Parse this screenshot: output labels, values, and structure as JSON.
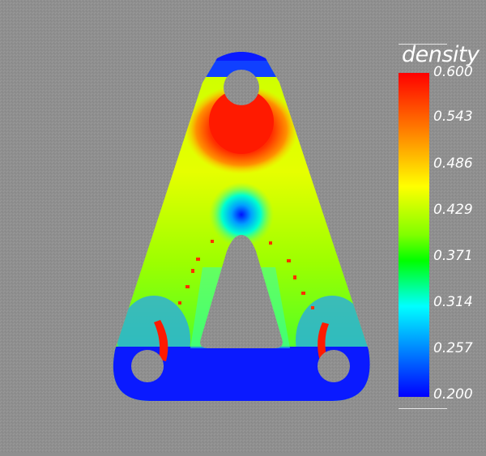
{
  "legend": {
    "title": "density",
    "ticks": [
      "0.600",
      "0.543",
      "0.486",
      "0.429",
      "0.371",
      "0.314",
      "0.257",
      "0.200"
    ],
    "range": [
      0.2,
      0.6
    ],
    "colormap": [
      "#0000ff",
      "#00ffff",
      "#00ff00",
      "#ffff00",
      "#ff7f00",
      "#ff0000"
    ]
  },
  "colors": {
    "background": "#8f8f8f",
    "low_density": "#0a1aff",
    "high_density": "#ff1a00"
  }
}
